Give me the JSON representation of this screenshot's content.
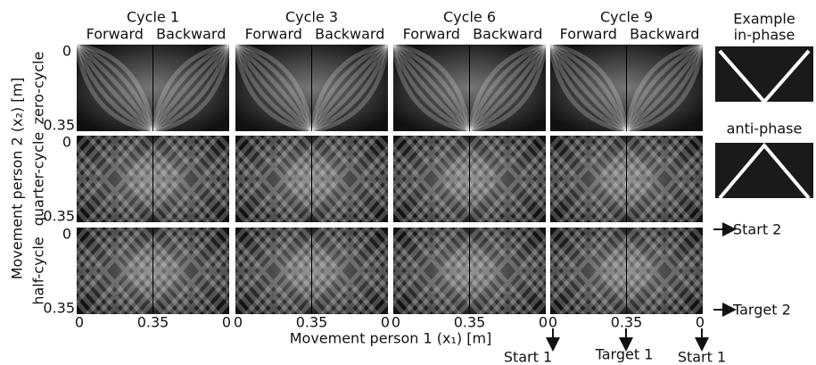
{
  "columns": [
    {
      "title": "Cycle 1",
      "forward": "Forward",
      "backward": "Backward"
    },
    {
      "title": "Cycle 3",
      "forward": "Forward",
      "backward": "Backward"
    },
    {
      "title": "Cycle 6",
      "forward": "Forward",
      "backward": "Backward"
    },
    {
      "title": "Cycle 9",
      "forward": "Forward",
      "backward": "Backward"
    }
  ],
  "rows": [
    "zero-cycle",
    "quarter-cycle",
    "half-cycle"
  ],
  "y_ticks": [
    "0",
    "0.35"
  ],
  "x_ticks": [
    "0",
    "0.35",
    "0"
  ],
  "y_label": "Movement person 2 (x₂) [m]",
  "x_label": "Movement person 1 (x₁) [m]",
  "example": {
    "title": "Example",
    "in_phase": "in-phase",
    "anti_phase": "anti-phase"
  },
  "annotations": {
    "start2": "Start 2",
    "target2": "Target 2",
    "start1_left": "Start 1",
    "target1": "Target 1",
    "start1_right": "Start 1"
  }
}
